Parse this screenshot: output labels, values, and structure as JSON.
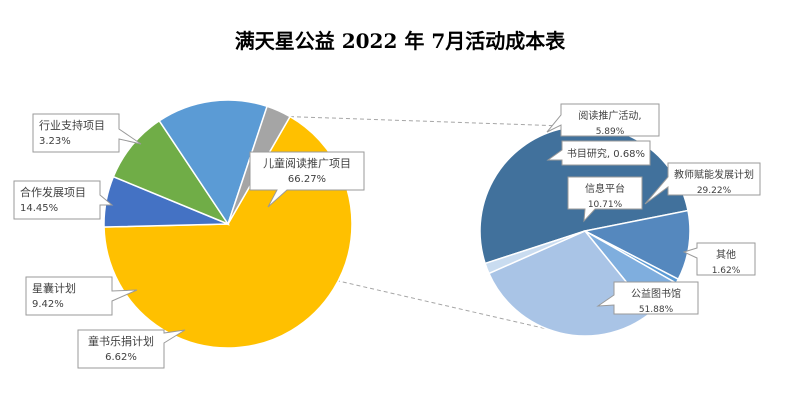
{
  "chart_data": {
    "type": "pie",
    "title": "满天星公益 2022 年 7月活动成本表",
    "main_pie": {
      "slices": [
        {
          "name": "儿童阅读推广项目",
          "value": 66.27,
          "label": "66.27%",
          "color": "#FFC000"
        },
        {
          "name": "童书乐捐计划",
          "value": 6.62,
          "label": "6.62%",
          "color": "#4472C4"
        },
        {
          "name": "星囊计划",
          "value": 9.42,
          "label": "9.42%",
          "color": "#70AD47"
        },
        {
          "name": "合作发展项目",
          "value": 14.45,
          "label": "14.45%",
          "color": "#5B9BD5"
        },
        {
          "name": "行业支持项目",
          "value": 3.23,
          "label": "3.23%",
          "color": "#A5A5A5"
        }
      ]
    },
    "sub_pie": {
      "parent": "儿童阅读推广项目",
      "slices": [
        {
          "name": "公益图书馆",
          "value": 51.88,
          "label": "51.88%",
          "color": "#41719C"
        },
        {
          "name": "信息平台",
          "value": 10.71,
          "label": "10.71%",
          "color": "#5588BE"
        },
        {
          "name": "书目研究",
          "value": 0.68,
          "label": "0.68%",
          "color": "#5B9BD5"
        },
        {
          "name": "阅读推广活动",
          "value": 5.89,
          "label": "5.89%",
          "color": "#7FAEDE"
        },
        {
          "name": "教师赋能发展计划",
          "value": 29.22,
          "label": "29.22%",
          "color": "#A9C4E6"
        },
        {
          "name": "其他",
          "value": 1.62,
          "label": "1.62%",
          "color": "#C9DCF0"
        }
      ]
    },
    "legend": "none"
  }
}
